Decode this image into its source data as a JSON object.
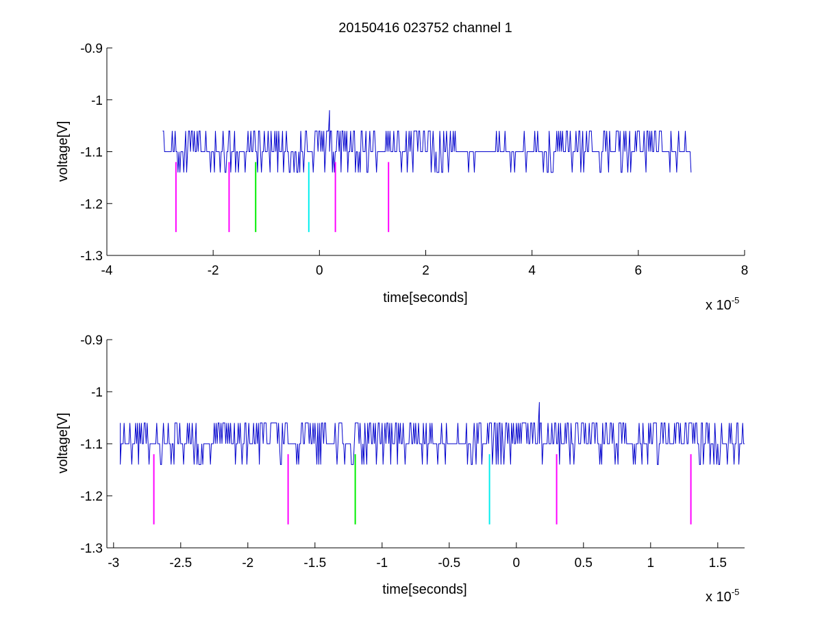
{
  "figure": {
    "title": "20150416 023752 channel 1"
  },
  "colors": {
    "trace": "#0000cc",
    "magenta": "#ff00ff",
    "green": "#00ee00",
    "cyan": "#00eeee",
    "axis": "#000000"
  },
  "chart_data": [
    {
      "type": "line",
      "title": "20150416 023752 channel 1",
      "xlabel": "time[seconds]",
      "ylabel": "voltage[V]",
      "x_multiplier": "x 10",
      "x_exponent": "-5",
      "xlim": [
        -4,
        8
      ],
      "ylim": [
        -1.3,
        -0.9
      ],
      "y_reversed": true,
      "xticks": [
        -4,
        -2,
        0,
        2,
        4,
        6,
        8
      ],
      "xtick_labels": [
        "-4",
        "-2",
        "0",
        "2",
        "4",
        "6",
        "8"
      ],
      "yticks": [
        -0.9,
        -1,
        -1.1,
        -1.2,
        -1.3
      ],
      "ytick_labels": [
        "-0.9",
        "-1",
        "-1.1",
        "-1.2",
        "-1.3"
      ],
      "grid": false,
      "series": [
        {
          "kind": "noisy-trace",
          "x_range": [
            -2.95,
            7.0
          ],
          "baseline": -1.1,
          "levels": [
            -1.14,
            -1.1,
            -1.06
          ],
          "spike": {
            "x": 0.18,
            "y": -1.02
          },
          "dense_intervals": [
            [
              -2.85,
              2.6
            ],
            [
              4.4,
              6.95
            ]
          ],
          "sparse_intervals": [
            [
              -2.95,
              -2.85
            ],
            [
              2.6,
              4.4
            ]
          ],
          "low_cluster_intervals": [
            [
              4.2,
              4.4
            ]
          ]
        }
      ],
      "markers": [
        {
          "x": -2.7,
          "y_top": -1.12,
          "y_bottom": -1.255,
          "color": "magenta"
        },
        {
          "x": -1.7,
          "y_top": -1.12,
          "y_bottom": -1.255,
          "color": "magenta"
        },
        {
          "x": -1.2,
          "y_top": -1.12,
          "y_bottom": -1.255,
          "color": "green"
        },
        {
          "x": -0.2,
          "y_top": -1.12,
          "y_bottom": -1.255,
          "color": "cyan"
        },
        {
          "x": 0.3,
          "y_top": -1.12,
          "y_bottom": -1.255,
          "color": "magenta"
        },
        {
          "x": 1.3,
          "y_top": -1.12,
          "y_bottom": -1.255,
          "color": "magenta"
        }
      ]
    },
    {
      "type": "line",
      "title": "",
      "xlabel": "time[seconds]",
      "ylabel": "voltage[V]",
      "x_multiplier": "x 10",
      "x_exponent": "-5",
      "xlim": [
        -3.05,
        1.7
      ],
      "ylim": [
        -1.3,
        -0.9
      ],
      "y_reversed": true,
      "xticks": [
        -3,
        -2.5,
        -2,
        -1.5,
        -1,
        -0.5,
        0,
        0.5,
        1,
        1.5
      ],
      "xtick_labels": [
        "-3",
        "-2.5",
        "-2",
        "-1.5",
        "-1",
        "-0.5",
        "0",
        "0.5",
        "1",
        "1.5"
      ],
      "yticks": [
        -0.9,
        -1,
        -1.1,
        -1.2,
        -1.3
      ],
      "ytick_labels": [
        "-0.9",
        "-1",
        "-1.1",
        "-1.2",
        "-1.3"
      ],
      "grid": false,
      "series": [
        {
          "kind": "noisy-trace",
          "x_range": [
            -2.95,
            1.7
          ],
          "baseline": -1.1,
          "levels": [
            -1.14,
            -1.1,
            -1.06
          ],
          "spike": {
            "x": 0.17,
            "y": -1.02
          },
          "dense_intervals": [
            [
              -2.95,
              1.7
            ]
          ],
          "sparse_intervals": [],
          "low_cluster_intervals": []
        }
      ],
      "markers": [
        {
          "x": -2.7,
          "y_top": -1.12,
          "y_bottom": -1.255,
          "color": "magenta"
        },
        {
          "x": -1.7,
          "y_top": -1.12,
          "y_bottom": -1.255,
          "color": "magenta"
        },
        {
          "x": -1.2,
          "y_top": -1.12,
          "y_bottom": -1.255,
          "color": "green"
        },
        {
          "x": -0.2,
          "y_top": -1.12,
          "y_bottom": -1.255,
          "color": "cyan"
        },
        {
          "x": 0.3,
          "y_top": -1.12,
          "y_bottom": -1.255,
          "color": "magenta"
        },
        {
          "x": 1.3,
          "y_top": -1.12,
          "y_bottom": -1.255,
          "color": "magenta"
        }
      ]
    }
  ]
}
